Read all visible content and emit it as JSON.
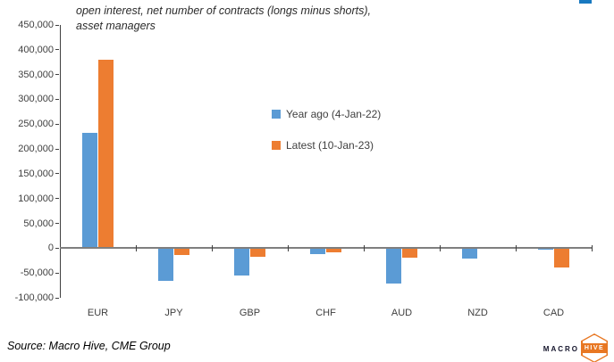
{
  "title": {
    "line1": "open interest, net number of contracts (longs minus shorts),",
    "line2": "asset managers"
  },
  "legend": [
    {
      "label": "Year ago (4-Jan-22)",
      "color": "#5b9bd5"
    },
    {
      "label": "Latest (10-Jan-23)",
      "color": "#ed7d31"
    }
  ],
  "chart_data": {
    "type": "bar",
    "categories": [
      "EUR",
      "JPY",
      "GBP",
      "CHF",
      "AUD",
      "NZD",
      "CAD"
    ],
    "series": [
      {
        "name": "Year ago (4-Jan-22)",
        "color": "#5b9bd5",
        "values": [
          233000,
          -68000,
          -56000,
          -13000,
          -73000,
          -22000,
          -4000
        ]
      },
      {
        "name": "Latest (10-Jan-23)",
        "color": "#ed7d31",
        "values": [
          380000,
          -16000,
          -20000,
          -10000,
          -21000,
          -3000,
          -41000
        ]
      }
    ],
    "title": "open interest, net number of contracts (longs minus shorts), asset managers",
    "xlabel": "",
    "ylabel": "",
    "ylim": [
      -100000,
      450000
    ],
    "y_step": 50000,
    "y_tick_labels": [
      "450,000",
      "400,000",
      "350,000",
      "300,000",
      "250,000",
      "200,000",
      "150,000",
      "100,000",
      "50,000",
      "0",
      "-50,000",
      "-100,000"
    ],
    "grid": false,
    "legend_position": "center-right"
  },
  "source": "Source: Macro Hive, CME Group",
  "logo": {
    "macro": "MACRO",
    "hive": "HIVE",
    "accent": "#e87722"
  },
  "artifact_color": "#1879c0"
}
